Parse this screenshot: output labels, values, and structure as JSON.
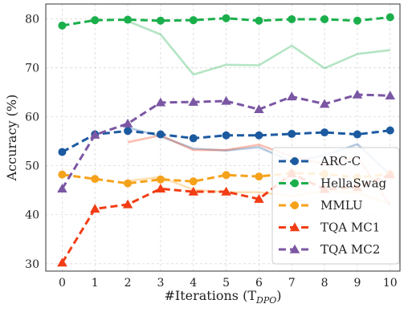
{
  "chart_data": {
    "type": "line",
    "xlabel": "#Iterations (T",
    "xlabel_sub": "DPO",
    "xlabel_close": ")",
    "ylabel": "Accuracy (%)",
    "x": [
      0,
      1,
      2,
      3,
      4,
      5,
      6,
      7,
      8,
      9,
      10
    ],
    "xlim": [
      -0.5,
      10.3
    ],
    "ylim": [
      28.5,
      83
    ],
    "yticks": [
      30,
      40,
      50,
      60,
      70,
      80
    ],
    "grid": true,
    "legend_position": "lower-right",
    "series": [
      {
        "name": "ARC-C",
        "color": "#1c5aa0",
        "marker": "circle",
        "values": [
          52.8,
          56.4,
          57.1,
          56.4,
          55.6,
          56.2,
          56.2,
          56.5,
          56.8,
          56.4,
          57.2
        ],
        "faded": [
          null,
          null,
          57.8,
          56.0,
          53.5,
          53.1,
          53.8,
          50.8,
          52.1,
          54.4,
          48.2
        ]
      },
      {
        "name": "HellaSwag",
        "color": "#1aaf4b",
        "marker": "circle",
        "values": [
          78.6,
          79.7,
          79.8,
          79.6,
          79.7,
          80.1,
          79.6,
          79.9,
          79.9,
          79.6,
          80.3
        ],
        "faded": [
          null,
          null,
          79.5,
          76.8,
          68.6,
          70.6,
          70.5,
          74.5,
          69.9,
          72.8,
          73.6
        ]
      },
      {
        "name": "MMLU",
        "color": "#f5a21b",
        "marker": "circle",
        "values": [
          48.2,
          47.3,
          46.4,
          47.2,
          46.8,
          48.1,
          47.8,
          48.5,
          48.3,
          47.6,
          48.3
        ],
        "faded": [
          null,
          null,
          46.9,
          47.7,
          45.1,
          44.6,
          44.6,
          43.8,
          44.9,
          44.5,
          42.2
        ]
      },
      {
        "name": "TQA MC1",
        "color": "#f23d15",
        "marker": "triangle",
        "values": [
          30.2,
          41.2,
          42.1,
          45.3,
          44.7,
          44.7,
          43.2,
          48.4,
          45.2,
          45.6,
          48.2
        ],
        "faded": [
          null,
          null,
          54.8,
          56.2,
          53.2,
          53.2,
          54.3,
          51.9,
          50.3,
          51.8,
          41.9
        ]
      },
      {
        "name": "TQA MC2",
        "color": "#7b57a3",
        "marker": "triangle",
        "values": [
          45.3,
          56.3,
          58.6,
          62.9,
          63.0,
          63.2,
          61.5,
          64.1,
          62.6,
          64.5,
          64.3
        ],
        "faded": [
          null,
          null,
          null,
          null,
          null,
          null,
          null,
          null,
          null,
          null,
          null
        ]
      }
    ]
  }
}
